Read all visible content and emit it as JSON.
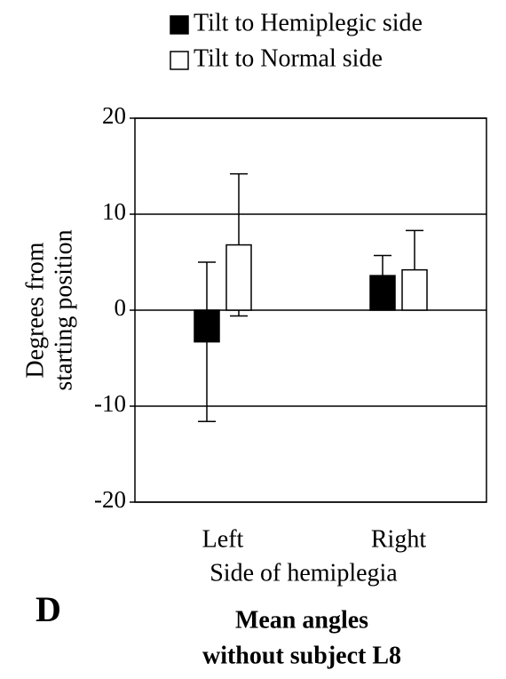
{
  "chart_data": {
    "type": "bar",
    "categories": [
      "Left",
      "Right"
    ],
    "series": [
      {
        "name": "Tilt to Hemiplegic side",
        "color": "#000000",
        "values": [
          -3.3,
          3.6
        ],
        "errors": [
          8.3,
          2.1
        ]
      },
      {
        "name": "Tilt to Normal side",
        "color": "#ffffff",
        "values": [
          6.8,
          4.2
        ],
        "errors": [
          7.4,
          4.1
        ]
      }
    ],
    "xlabel": "Side of hemiplegia",
    "ylabel": [
      "Degrees from",
      "starting position"
    ],
    "ylim": [
      -20,
      20
    ],
    "yticks": [
      -20,
      -10,
      0,
      10,
      20
    ],
    "grid": true,
    "legend": "top",
    "panel_label": "D",
    "caption": [
      "Mean angles",
      "without subject L8"
    ]
  }
}
